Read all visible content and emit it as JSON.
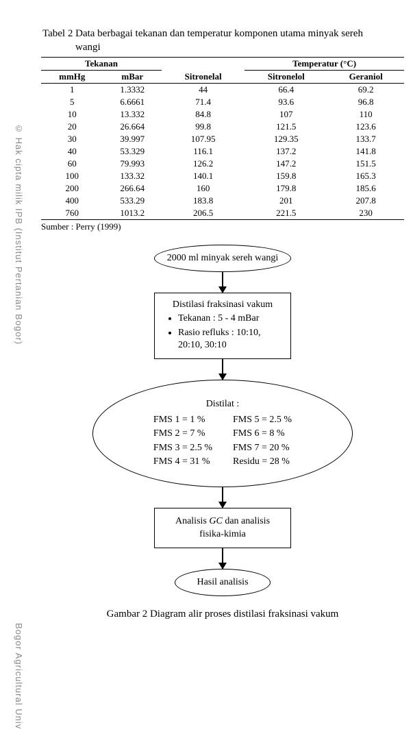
{
  "watermark": {
    "left": "© Hak cipta milik IPB (Institut Pertanian Bogor)",
    "bottom": "Bogor Agricultural Univ"
  },
  "table": {
    "caption_prefix": "Tabel 2 ",
    "caption_line1": "Data berbagai tekanan dan temperatur komponen utama minyak sereh",
    "caption_line2": "wangi",
    "header_group1": "Tekanan",
    "header_group2": "Temperatur (°C)",
    "columns": [
      "mmHg",
      "mBar",
      "Sitronelal",
      "Sitronelol",
      "Geraniol"
    ],
    "rows": [
      [
        "1",
        "1.3332",
        "44",
        "66.4",
        "69.2"
      ],
      [
        "5",
        "6.6661",
        "71.4",
        "93.6",
        "96.8"
      ],
      [
        "10",
        "13.332",
        "84.8",
        "107",
        "110"
      ],
      [
        "20",
        "26.664",
        "99.8",
        "121.5",
        "123.6"
      ],
      [
        "30",
        "39.997",
        "107.95",
        "129.35",
        "133.7"
      ],
      [
        "40",
        "53.329",
        "116.1",
        "137.2",
        "141.8"
      ],
      [
        "60",
        "79.993",
        "126.2",
        "147.2",
        "151.5"
      ],
      [
        "100",
        "133.32",
        "140.1",
        "159.8",
        "165.3"
      ],
      [
        "200",
        "266.64",
        "160",
        "179.8",
        "185.6"
      ],
      [
        "400",
        "533.29",
        "183.8",
        "201",
        "207.8"
      ],
      [
        "760",
        "1013.2",
        "206.5",
        "221.5",
        "230"
      ]
    ],
    "source": "Sumber : Perry (1999)"
  },
  "flow": {
    "start": "2000 ml minyak sereh wangi",
    "process": {
      "title": "Distilasi fraksinasi vakum",
      "item1": "Tekanan : 5 - 4 mBar",
      "item2": "Rasio refluks : 10:10, 20:10, 30:10"
    },
    "distilat": {
      "title": "Distilat :",
      "left": {
        "l1": "FMS 1 = 1 %",
        "l2": "FMS 2 = 7 %",
        "l3": "FMS 3 = 2.5 %",
        "l4": "FMS 4 = 31 %"
      },
      "right": {
        "r1": "FMS 5 = 2.5 %",
        "r2": "FMS 6 = 8 %",
        "r3": "FMS 7 = 20 %",
        "r4": "Residu = 28 %"
      }
    },
    "analysis_pre": "Analisis ",
    "analysis_gc": "GC",
    "analysis_post": " dan analisis fisika-kimia",
    "result": "Hasil analisis"
  },
  "figure_caption": "Gambar 2 Diagram alir proses distilasi fraksinasi vakum"
}
